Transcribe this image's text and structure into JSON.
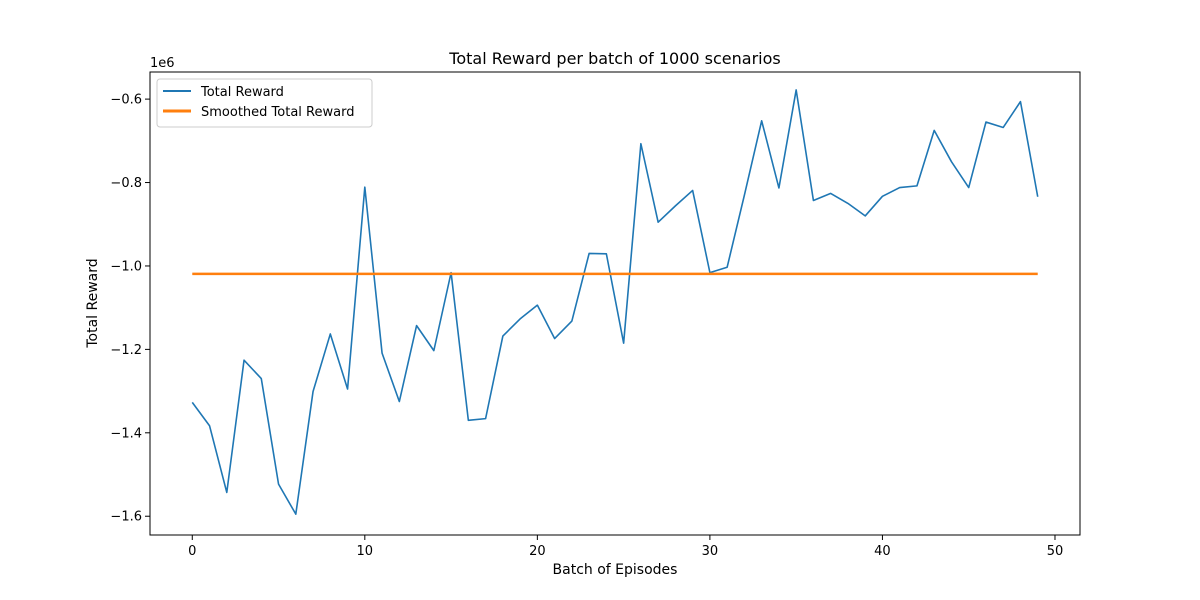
{
  "chart_data": {
    "type": "line",
    "title": "Total Reward per batch of 1000 scenarios",
    "xlabel": "Batch of Episodes",
    "ylabel": "Total Reward",
    "y_offset_text": "1e6",
    "xlim": [
      -2.45,
      51.45
    ],
    "ylim": [
      -1.645,
      -0.535
    ],
    "x_ticks": [
      0,
      10,
      20,
      30,
      40,
      50
    ],
    "x_tick_labels": [
      "0",
      "10",
      "20",
      "30",
      "40",
      "50"
    ],
    "y_ticks": [
      -1.6,
      -1.4,
      -1.2,
      -1.0,
      -0.8,
      -0.6
    ],
    "y_tick_labels": [
      "−1.6",
      "−1.4",
      "−1.2",
      "−1.0",
      "−0.8",
      "−0.6"
    ],
    "grid": false,
    "legend_position": "upper-left",
    "series": [
      {
        "name": "Total Reward",
        "color": "#1f77b4",
        "x": [
          0,
          1,
          2,
          3,
          4,
          5,
          6,
          7,
          8,
          9,
          10,
          11,
          12,
          13,
          14,
          15,
          16,
          17,
          18,
          19,
          20,
          21,
          22,
          23,
          24,
          25,
          26,
          27,
          28,
          29,
          30,
          31,
          32,
          33,
          34,
          35,
          36,
          37,
          38,
          39,
          40,
          41,
          42,
          43,
          44,
          45,
          46,
          47,
          48,
          49
        ],
        "values": [
          -1.327,
          -1.383,
          -1.543,
          -1.226,
          -1.27,
          -1.523,
          -1.595,
          -1.301,
          -1.163,
          -1.295,
          -0.811,
          -1.209,
          -1.325,
          -1.143,
          -1.203,
          -1.016,
          -1.37,
          -1.366,
          -1.168,
          -1.127,
          -1.094,
          -1.174,
          -1.132,
          -0.97,
          -0.971,
          -1.185,
          -0.707,
          -0.895,
          -0.856,
          -0.819,
          -1.016,
          -1.003,
          -0.83,
          -0.652,
          -0.813,
          -0.578,
          -0.843,
          -0.826,
          -0.85,
          -0.88,
          -0.833,
          -0.812,
          -0.808,
          -0.675,
          -0.75,
          -0.812,
          -0.655,
          -0.668,
          -0.606,
          -0.834
        ]
      },
      {
        "name": "Smoothed Total Reward",
        "color": "#ff7f0e",
        "x": [
          0,
          49
        ],
        "values": [
          -1.019,
          -1.019
        ]
      }
    ]
  }
}
